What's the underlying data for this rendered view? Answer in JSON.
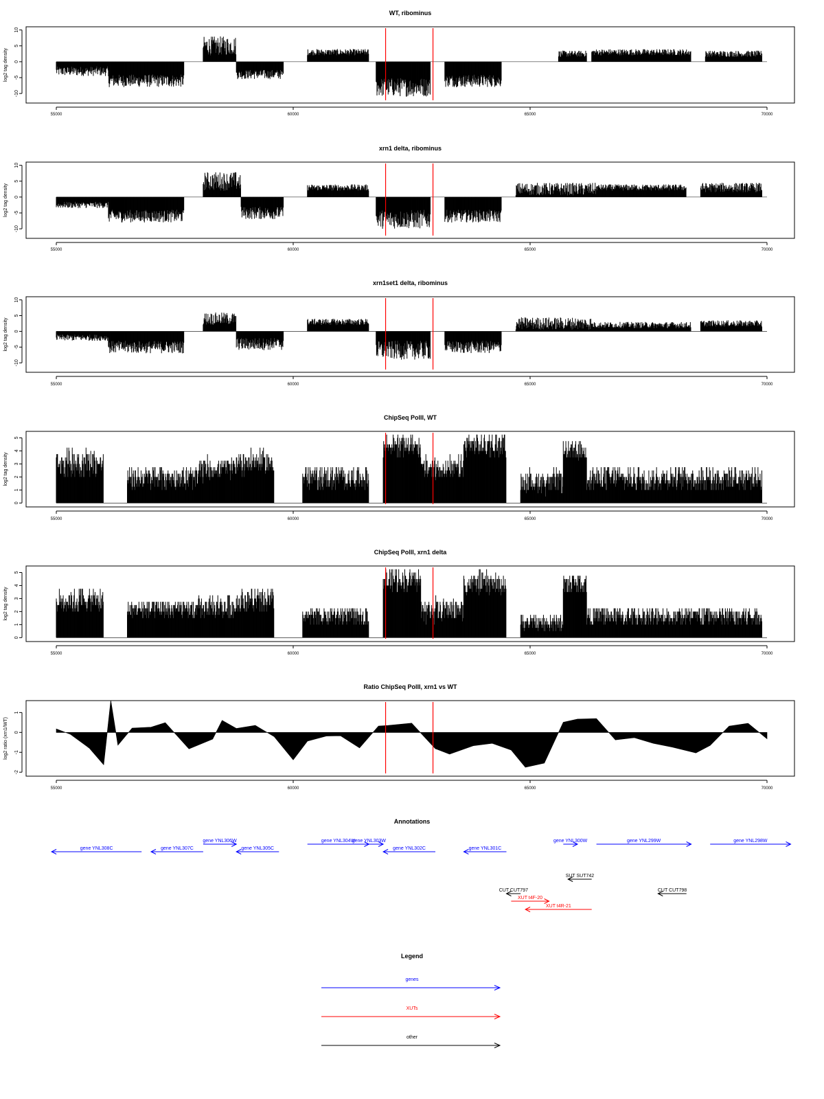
{
  "chart_data": [
    {
      "type": "bar",
      "title": "WT, ribominus",
      "xlabel": "",
      "ylabel": "log2 tag density",
      "xlim": [
        55000,
        70000
      ],
      "ylim": [
        -13,
        11
      ],
      "xticks": [
        "55000",
        "60000",
        "65000",
        "70000"
      ],
      "yticks": [
        "10",
        "5",
        "0",
        "-5",
        "-10"
      ],
      "series": [
        {
          "color": "#000000",
          "regions": [
            {
              "x": [
                55000,
                56100
              ],
              "level": -3,
              "spread": 1.5
            },
            {
              "x": [
                56100,
                57700
              ],
              "level": -6,
              "spread": 2
            },
            {
              "x": [
                58100,
                58800
              ],
              "level": 5,
              "spread": 3
            },
            {
              "x": [
                58800,
                59800
              ],
              "level": -4,
              "spread": 1.5
            },
            {
              "x": [
                60300,
                61600
              ],
              "level": 3,
              "spread": 1
            },
            {
              "x": [
                61750,
                62900
              ],
              "level": -8,
              "spread": 3
            },
            {
              "x": [
                63200,
                64400
              ],
              "level": -6,
              "spread": 2
            },
            {
              "x": [
                65600,
                66200
              ],
              "level": 2.5,
              "spread": 1
            },
            {
              "x": [
                66300,
                68400
              ],
              "level": 3,
              "spread": 1
            },
            {
              "x": [
                68700,
                69900
              ],
              "level": 2.5,
              "spread": 1
            }
          ]
        }
      ],
      "markers": [
        {
          "x": 61950,
          "color": "#ff0000"
        },
        {
          "x": 62950,
          "color": "#ff0000"
        }
      ]
    },
    {
      "type": "bar",
      "title": "xrn1 delta, ribominus",
      "xlabel": "",
      "ylabel": "log2 tag density",
      "xlim": [
        55000,
        70000
      ],
      "ylim": [
        -13,
        11
      ],
      "xticks": [
        "55000",
        "60000",
        "65000",
        "70000"
      ],
      "yticks": [
        "10",
        "5",
        "0",
        "-5",
        "-10"
      ],
      "series": [
        {
          "color": "#000000",
          "regions": [
            {
              "x": [
                55000,
                56100
              ],
              "level": -2.5,
              "spread": 1
            },
            {
              "x": [
                56100,
                57700
              ],
              "level": -6,
              "spread": 2
            },
            {
              "x": [
                58100,
                58900
              ],
              "level": 5,
              "spread": 3
            },
            {
              "x": [
                58900,
                59800
              ],
              "level": -5,
              "spread": 2
            },
            {
              "x": [
                60300,
                61600
              ],
              "level": 3,
              "spread": 1
            },
            {
              "x": [
                61750,
                62900
              ],
              "level": -7,
              "spread": 3
            },
            {
              "x": [
                63200,
                64400
              ],
              "level": -6,
              "spread": 2
            },
            {
              "x": [
                64700,
                66400
              ],
              "level": 2.5,
              "spread": 2
            },
            {
              "x": [
                66400,
                68300
              ],
              "level": 3,
              "spread": 1
            },
            {
              "x": [
                68600,
                69900
              ],
              "level": 3,
              "spread": 1.5
            }
          ]
        }
      ],
      "markers": [
        {
          "x": 61950,
          "color": "#ff0000"
        },
        {
          "x": 62950,
          "color": "#ff0000"
        }
      ]
    },
    {
      "type": "bar",
      "title": "xrn1set1 delta, ribominus",
      "xlabel": "",
      "ylabel": "log2 tag density",
      "xlim": [
        55000,
        70000
      ],
      "ylim": [
        -13,
        11
      ],
      "xticks": [
        "55000",
        "60000",
        "65000",
        "70000"
      ],
      "yticks": [
        "10",
        "5",
        "0",
        "-5",
        "-10"
      ],
      "series": [
        {
          "color": "#000000",
          "regions": [
            {
              "x": [
                55000,
                56100
              ],
              "level": -2,
              "spread": 1
            },
            {
              "x": [
                56100,
                57700
              ],
              "level": -5,
              "spread": 2
            },
            {
              "x": [
                58100,
                58800
              ],
              "level": 4,
              "spread": 2
            },
            {
              "x": [
                58800,
                59800
              ],
              "level": -4,
              "spread": 2
            },
            {
              "x": [
                60300,
                61600
              ],
              "level": 3,
              "spread": 1
            },
            {
              "x": [
                61750,
                62900
              ],
              "level": -6,
              "spread": 3
            },
            {
              "x": [
                63200,
                64400
              ],
              "level": -5,
              "spread": 2
            },
            {
              "x": [
                64700,
                66300
              ],
              "level": 2.5,
              "spread": 2
            },
            {
              "x": [
                66300,
                68400
              ],
              "level": 2,
              "spread": 1
            },
            {
              "x": [
                68600,
                69900
              ],
              "level": 2.5,
              "spread": 1
            }
          ]
        }
      ],
      "markers": [
        {
          "x": 61950,
          "color": "#ff0000"
        },
        {
          "x": 62950,
          "color": "#ff0000"
        }
      ]
    },
    {
      "type": "bar",
      "title": "ChipSeq PolII, WT",
      "xlabel": "",
      "ylabel": "log2 tag density",
      "xlim": [
        55000,
        70000
      ],
      "ylim": [
        -0.3,
        5.5
      ],
      "xticks": [
        "55000",
        "60000",
        "65000",
        "70000"
      ],
      "yticks": [
        "0",
        "1",
        "2",
        "3",
        "4",
        "5"
      ],
      "series": [
        {
          "color": "#000000",
          "regions": [
            {
              "x": [
                55000,
                56000
              ],
              "level": 3,
              "spread": 1
            },
            {
              "x": [
                56500,
                58000
              ],
              "level": 1.8,
              "spread": 0.8
            },
            {
              "x": [
                58000,
                58800
              ],
              "level": 2.5,
              "spread": 0.8
            },
            {
              "x": [
                58800,
                59600
              ],
              "level": 3,
              "spread": 0.8
            },
            {
              "x": [
                60200,
                61600
              ],
              "level": 1.8,
              "spread": 0.8
            },
            {
              "x": [
                61900,
                62700
              ],
              "level": 4.3,
              "spread": 0.7
            },
            {
              "x": [
                62700,
                63600
              ],
              "level": 2.5,
              "spread": 0.8
            },
            {
              "x": [
                63600,
                64500
              ],
              "level": 4.3,
              "spread": 0.8
            },
            {
              "x": [
                64800,
                65700
              ],
              "level": 1.5,
              "spread": 0.8
            },
            {
              "x": [
                65700,
                66200
              ],
              "level": 3.8,
              "spread": 0.6
            },
            {
              "x": [
                66200,
                69900
              ],
              "level": 1.8,
              "spread": 0.8
            }
          ]
        }
      ],
      "markers": [
        {
          "x": 61950,
          "color": "#ff0000"
        },
        {
          "x": 62950,
          "color": "#ff0000"
        }
      ]
    },
    {
      "type": "bar",
      "title": "ChipSeq PolII, xrn1 delta",
      "xlabel": "",
      "ylabel": "log2 tag density",
      "xlim": [
        55000,
        70000
      ],
      "ylim": [
        -0.3,
        5.5
      ],
      "xticks": [
        "55000",
        "60000",
        "65000",
        "70000"
      ],
      "yticks": [
        "0",
        "1",
        "2",
        "3",
        "4",
        "5"
      ],
      "series": [
        {
          "color": "#000000",
          "regions": [
            {
              "x": [
                55000,
                56000
              ],
              "level": 2.7,
              "spread": 0.8
            },
            {
              "x": [
                56500,
                58000
              ],
              "level": 2,
              "spread": 0.7
            },
            {
              "x": [
                58000,
                58800
              ],
              "level": 2.2,
              "spread": 0.8
            },
            {
              "x": [
                58800,
                59600
              ],
              "level": 2.7,
              "spread": 0.8
            },
            {
              "x": [
                60200,
                61600
              ],
              "level": 1.5,
              "spread": 0.7
            },
            {
              "x": [
                61900,
                62700
              ],
              "level": 4.3,
              "spread": 0.7
            },
            {
              "x": [
                62700,
                63600
              ],
              "level": 2,
              "spread": 0.8
            },
            {
              "x": [
                63600,
                64500
              ],
              "level": 4,
              "spread": 0.8
            },
            {
              "x": [
                64800,
                65700
              ],
              "level": 1,
              "spread": 0.6
            },
            {
              "x": [
                65700,
                66200
              ],
              "level": 4,
              "spread": 0.6
            },
            {
              "x": [
                66200,
                69900
              ],
              "level": 1.5,
              "spread": 0.7
            }
          ]
        }
      ],
      "markers": [
        {
          "x": 61950,
          "color": "#ff0000"
        },
        {
          "x": 62950,
          "color": "#ff0000"
        }
      ]
    },
    {
      "type": "area",
      "title": "Ratio ChipSeq PolII, xrn1 vs WT",
      "xlabel": "",
      "ylabel": "log2 ratio (xrn1/WT)",
      "xlim": [
        55000,
        70000
      ],
      "ylim": [
        -2.2,
        1.6
      ],
      "xticks": [
        "55000",
        "60000",
        "65000",
        "70000"
      ],
      "yticks": [
        "1",
        "0",
        "-1",
        "-2"
      ],
      "series": [
        {
          "color": "#000000",
          "x": [
            55000,
            55300,
            55700,
            56000,
            56150,
            56300,
            56600,
            57000,
            57300,
            57800,
            58300,
            58500,
            58800,
            59200,
            59600,
            60000,
            60300,
            60700,
            61000,
            61400,
            61800,
            62000,
            62500,
            63000,
            63300,
            63800,
            64200,
            64600,
            64900,
            65300,
            65700,
            66000,
            66400,
            66800,
            67200,
            67600,
            68000,
            68500,
            68800,
            69200,
            69600,
            70000
          ],
          "y": [
            0.2,
            -0.1,
            -0.8,
            -1.6,
            1.5,
            -0.6,
            0.2,
            0.3,
            0.5,
            -0.9,
            -0.3,
            0.6,
            0.2,
            0.4,
            -0.2,
            -1.4,
            -0.5,
            -0.2,
            -0.2,
            -0.8,
            0.3,
            0.4,
            0.5,
            -0.8,
            -1.1,
            -0.6,
            -0.5,
            -1.0,
            -1.8,
            -1.4,
            0.5,
            0.6,
            0.7,
            -0.4,
            -0.3,
            -0.6,
            -0.8,
            -1.1,
            -0.6,
            0.3,
            0.5,
            -0.3
          ]
        }
      ],
      "markers": [
        {
          "x": 61950,
          "color": "#ff0000"
        },
        {
          "x": 62950,
          "color": "#ff0000"
        }
      ]
    }
  ],
  "annotations": {
    "title": "Annotations",
    "features": [
      {
        "label": "gene YNL308C",
        "kind": "gene",
        "strand": "-",
        "x": [
          54900,
          56800
        ],
        "row": 0
      },
      {
        "label": "gene YNL307C",
        "kind": "gene",
        "strand": "-",
        "x": [
          57000,
          58100
        ],
        "row": 0
      },
      {
        "label": "gene YNL306W",
        "kind": "gene",
        "strand": "+",
        "x": [
          58100,
          58800
        ],
        "row": -1
      },
      {
        "label": "gene YNL305C",
        "kind": "gene",
        "strand": "-",
        "x": [
          58800,
          59700
        ],
        "row": 0
      },
      {
        "label": "gene YNL304W",
        "kind": "gene",
        "strand": "+",
        "x": [
          60300,
          61600
        ],
        "row": -1
      },
      {
        "label": "gene YNL303W",
        "kind": "gene",
        "strand": "+",
        "x": [
          61300,
          61900
        ],
        "row": -1
      },
      {
        "label": "gene YNL302C",
        "kind": "gene",
        "strand": "-",
        "x": [
          61900,
          63000
        ],
        "row": 0
      },
      {
        "label": "gene YNL301C",
        "kind": "gene",
        "strand": "-",
        "x": [
          63600,
          64500
        ],
        "row": 0
      },
      {
        "label": "gene YNL300W",
        "kind": "gene",
        "strand": "+",
        "x": [
          65700,
          66000
        ],
        "row": -1
      },
      {
        "label": "gene YNL299W",
        "kind": "gene",
        "strand": "+",
        "x": [
          66400,
          68400
        ],
        "row": -1
      },
      {
        "label": "gene YNL298W",
        "kind": "gene",
        "strand": "+",
        "x": [
          68800,
          70500
        ],
        "row": -1
      },
      {
        "label": "SUT SUT742",
        "kind": "other",
        "strand": "-",
        "x": [
          65800,
          66300
        ],
        "row": 2
      },
      {
        "label": "CUT CUT797",
        "kind": "other",
        "strand": "-",
        "x": [
          64500,
          64800
        ],
        "row": 3
      },
      {
        "label": "XUT t4F-20",
        "kind": "xut",
        "strand": "+",
        "x": [
          64600,
          65400
        ],
        "row": 4
      },
      {
        "label": "XUT t4R-21",
        "kind": "xut",
        "strand": "-",
        "x": [
          64900,
          66300
        ],
        "row": 5
      },
      {
        "label": "CUT CUT798",
        "kind": "other",
        "strand": "-",
        "x": [
          67700,
          68300
        ],
        "row": 3
      }
    ]
  },
  "legend": {
    "title": "Legend",
    "items": [
      {
        "label": "genes",
        "color": "#0000ff"
      },
      {
        "label": "XUTs",
        "color": "#ff0000"
      },
      {
        "label": "other",
        "color": "#000000"
      }
    ]
  }
}
